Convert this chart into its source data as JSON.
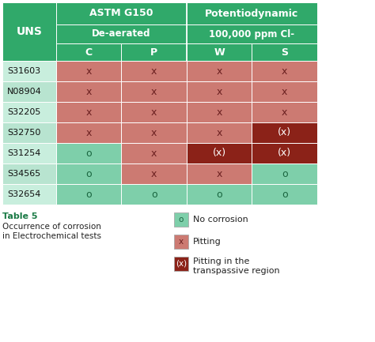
{
  "col_headers_row1": [
    "ASTM G150",
    "Potentiodynamic"
  ],
  "col_headers_row2": [
    "De-aerated",
    "100,000 ppm Cl-"
  ],
  "col_headers_row3": [
    "C",
    "P",
    "W",
    "S"
  ],
  "row_labels": [
    "S31603",
    "N08904",
    "S32205",
    "S32750",
    "S31254",
    "S34565",
    "S32654"
  ],
  "data": [
    [
      "x",
      "x",
      "x",
      "x"
    ],
    [
      "x",
      "x",
      "x",
      "x"
    ],
    [
      "x",
      "x",
      "x",
      "x"
    ],
    [
      "x",
      "x",
      "x",
      "(x)"
    ],
    [
      "o",
      "x",
      "(x)",
      "(x)"
    ],
    [
      "o",
      "x",
      "x",
      "o"
    ],
    [
      "o",
      "o",
      "o",
      "o"
    ]
  ],
  "color_no_corrosion": "#7ecfaa",
  "color_pitting": "#cc7a72",
  "color_transpassive": "#8b2218",
  "color_header_green": "#30a96a",
  "color_uns_bg_even": "#c8eedd",
  "color_uns_bg_odd": "#b8e4d0",
  "caption_title": "Table 5",
  "caption_body": "Occurrence of corrosion\nin Electrochemical tests",
  "legend_items": [
    {
      "symbol": "o",
      "color": "#7ecfaa",
      "label": "No corrosion"
    },
    {
      "symbol": "x",
      "color": "#cc7a72",
      "label": "Pitting"
    },
    {
      "symbol": "(x)",
      "color": "#8b2218",
      "label": "Pitting in the\ntranspassive region"
    }
  ]
}
